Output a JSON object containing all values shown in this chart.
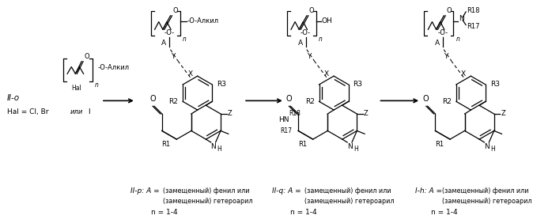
{
  "background_color": "#ffffff",
  "fig_width": 6.98,
  "fig_height": 2.82,
  "dpi": 100,
  "bottom_labels": {
    "IIp": "II-p: A =",
    "IIp_l1": "(замещенный) фенил или",
    "IIp_l2": "(замещенный) гетероарил",
    "IIp_n": "n = 1-4",
    "IIq": "II-q: A =",
    "IIq_l1": "(замещенный) фенил или",
    "IIq_l2": "(замещенный) гетероарил",
    "IIq_n": "n = 1-4",
    "Ih": "I-h: A =",
    "Ih_l1": "(замещенный) фенил или",
    "Ih_l2": "(замещенный) гетероарил",
    "Ih_n": "n = 1-4"
  },
  "reagent_label": "II-o",
  "hal_label": "Hal = Cl, Brили I",
  "alkyl": "Алкил",
  "HN_R18": "HN",
  "R18": "R18",
  "R17": "R17",
  "N_label": "N",
  "OH_label": "OH"
}
